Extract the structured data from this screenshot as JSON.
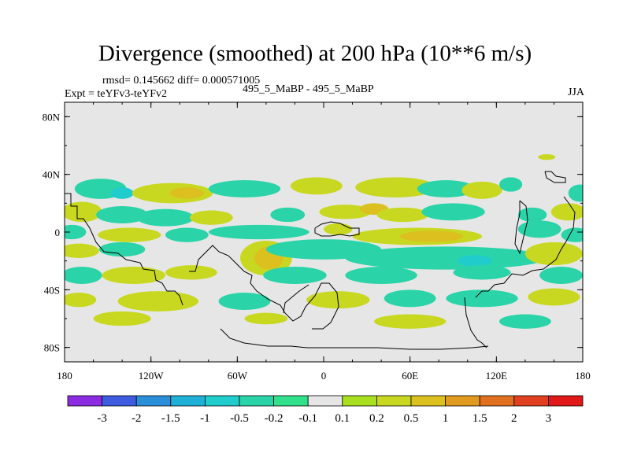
{
  "title": "Divergence (smoothed) at 200 hPa (10**6 m/s)",
  "stats": {
    "rmsd": "rmsd= 0.145662  diff= 0.000571005",
    "expt": "Expt = teYFv3-teYFv2",
    "cases": "495_5_MaBP - 495_5_MaBP",
    "season": "JJA"
  },
  "map": {
    "projection": "cylindrical equidistant",
    "lon_range": [
      -180,
      180
    ],
    "lat_range": [
      -90,
      90
    ],
    "background_color": "#e6e6e6",
    "coastline_color": "#000000",
    "x_ticks": [
      "180",
      "120W",
      "60W",
      "0",
      "60E",
      "120E",
      "180"
    ],
    "y_ticks": [
      "80N",
      "40N",
      "0",
      "40S",
      "80S"
    ]
  },
  "colorbar": {
    "labels": [
      "-3",
      "-2",
      "-1.5",
      "-1",
      "-0.5",
      "-0.2",
      "-0.1",
      "0.1",
      "0.2",
      "0.5",
      "1",
      "1.5",
      "2",
      "3"
    ],
    "colors": [
      "#8b2be2",
      "#3d5ce0",
      "#2a8fd8",
      "#1fb0d8",
      "#20cccc",
      "#2ad4a8",
      "#30e08a",
      "#e6e6e6",
      "#a8e020",
      "#c8d820",
      "#dcc020",
      "#e09a20",
      "#e07020",
      "#e04020",
      "#e01818"
    ]
  },
  "chart_data": {
    "type": "heatmap",
    "title": "Divergence (smoothed) at 200 hPa (10**6 m/s)",
    "field": "difference teYFv3 - teYFv2, JJA",
    "levels": [
      -3,
      -2,
      -1.5,
      -1,
      -0.5,
      -0.2,
      -0.1,
      0.1,
      0.2,
      0.5,
      1,
      1.5,
      2,
      3
    ],
    "blobs": [
      {
        "lon": -155,
        "lat": 30,
        "rlon": 18,
        "rlat": 7,
        "v": -0.3
      },
      {
        "lon": -140,
        "lat": 27,
        "rlon": 8,
        "rlat": 4,
        "v": -0.6
      },
      {
        "lon": -105,
        "lat": 27,
        "rlon": 28,
        "rlat": 7,
        "v": 0.3
      },
      {
        "lon": -95,
        "lat": 27,
        "rlon": 12,
        "rlat": 4,
        "v": 0.6
      },
      {
        "lon": -55,
        "lat": 30,
        "rlon": 25,
        "rlat": 6,
        "v": -0.3
      },
      {
        "lon": -5,
        "lat": 32,
        "rlon": 18,
        "rlat": 6,
        "v": 0.3
      },
      {
        "lon": 50,
        "lat": 31,
        "rlon": 28,
        "rlat": 7,
        "v": 0.3
      },
      {
        "lon": 85,
        "lat": 30,
        "rlon": 20,
        "rlat": 6,
        "v": -0.3
      },
      {
        "lon": 110,
        "lat": 29,
        "rlon": 14,
        "rlat": 6,
        "v": 0.3
      },
      {
        "lon": 130,
        "lat": 33,
        "rlon": 8,
        "rlat": 5,
        "v": -0.3
      },
      {
        "lon": 178,
        "lat": 27,
        "rlon": 8,
        "rlat": 6,
        "v": -0.3
      },
      {
        "lon": -168,
        "lat": 14,
        "rlon": 14,
        "rlat": 7,
        "v": 0.3
      },
      {
        "lon": -140,
        "lat": 12,
        "rlon": 18,
        "rlat": 6,
        "v": -0.3
      },
      {
        "lon": -110,
        "lat": 10,
        "rlon": 20,
        "rlat": 6,
        "v": -0.3
      },
      {
        "lon": -78,
        "lat": 10,
        "rlon": 15,
        "rlat": 5,
        "v": 0.3
      },
      {
        "lon": -25,
        "lat": 12,
        "rlon": 12,
        "rlat": 5,
        "v": -0.3
      },
      {
        "lon": 15,
        "lat": 14,
        "rlon": 18,
        "rlat": 5,
        "v": 0.3
      },
      {
        "lon": 35,
        "lat": 16,
        "rlon": 10,
        "rlat": 4,
        "v": 0.6
      },
      {
        "lon": 55,
        "lat": 12,
        "rlon": 18,
        "rlat": 5,
        "v": 0.3
      },
      {
        "lon": 90,
        "lat": 14,
        "rlon": 22,
        "rlat": 6,
        "v": -0.3
      },
      {
        "lon": 145,
        "lat": 12,
        "rlon": 10,
        "rlat": 5,
        "v": -0.3
      },
      {
        "lon": 170,
        "lat": 14,
        "rlon": 12,
        "rlat": 6,
        "v": 0.3
      },
      {
        "lon": -175,
        "lat": 0,
        "rlon": 10,
        "rlat": 5,
        "v": -0.3
      },
      {
        "lon": -135,
        "lat": -2,
        "rlon": 22,
        "rlat": 5,
        "v": 0.3
      },
      {
        "lon": -95,
        "lat": -2,
        "rlon": 15,
        "rlat": 5,
        "v": -0.3
      },
      {
        "lon": -45,
        "lat": 0,
        "rlon": 35,
        "rlat": 5,
        "v": -0.3
      },
      {
        "lon": 10,
        "lat": 2,
        "rlon": 10,
        "rlat": 4,
        "v": 0.3
      },
      {
        "lon": 65,
        "lat": -3,
        "rlon": 45,
        "rlat": 6,
        "v": 0.3
      },
      {
        "lon": 75,
        "lat": -3,
        "rlon": 22,
        "rlat": 4,
        "v": 0.6
      },
      {
        "lon": 150,
        "lat": 2,
        "rlon": 15,
        "rlat": 6,
        "v": -0.3
      },
      {
        "lon": 175,
        "lat": -2,
        "rlon": 10,
        "rlat": 5,
        "v": -0.3
      },
      {
        "lon": -170,
        "lat": -13,
        "rlon": 14,
        "rlat": 5,
        "v": 0.3
      },
      {
        "lon": -140,
        "lat": -12,
        "rlon": 16,
        "rlat": 5,
        "v": -0.3
      },
      {
        "lon": -40,
        "lat": -18,
        "rlon": 18,
        "rlat": 12,
        "v": 0.3
      },
      {
        "lon": -38,
        "lat": -18,
        "rlon": 10,
        "rlat": 8,
        "v": 0.6
      },
      {
        "lon": 0,
        "lat": -12,
        "rlon": 40,
        "rlat": 7,
        "v": -0.3
      },
      {
        "lon": 85,
        "lat": -18,
        "rlon": 70,
        "rlat": 8,
        "v": -0.3
      },
      {
        "lon": 105,
        "lat": -20,
        "rlon": 12,
        "rlat": 4,
        "v": -0.6
      },
      {
        "lon": 160,
        "lat": -15,
        "rlon": 20,
        "rlat": 8,
        "v": 0.3
      },
      {
        "lon": -168,
        "lat": -30,
        "rlon": 14,
        "rlat": 6,
        "v": -0.3
      },
      {
        "lon": -132,
        "lat": -30,
        "rlon": 22,
        "rlat": 6,
        "v": 0.3
      },
      {
        "lon": -92,
        "lat": -28,
        "rlon": 18,
        "rlat": 5,
        "v": 0.3
      },
      {
        "lon": -20,
        "lat": -30,
        "rlon": 22,
        "rlat": 6,
        "v": -0.3
      },
      {
        "lon": 40,
        "lat": -30,
        "rlon": 25,
        "rlat": 6,
        "v": -0.3
      },
      {
        "lon": 110,
        "lat": -28,
        "rlon": 20,
        "rlat": 5,
        "v": -0.3
      },
      {
        "lon": 165,
        "lat": -30,
        "rlon": 15,
        "rlat": 6,
        "v": -0.3
      },
      {
        "lon": -170,
        "lat": -47,
        "rlon": 12,
        "rlat": 5,
        "v": 0.3
      },
      {
        "lon": -115,
        "lat": -48,
        "rlon": 28,
        "rlat": 7,
        "v": 0.3
      },
      {
        "lon": -55,
        "lat": -48,
        "rlon": 18,
        "rlat": 6,
        "v": -0.3
      },
      {
        "lon": 10,
        "lat": -47,
        "rlon": 22,
        "rlat": 6,
        "v": 0.3
      },
      {
        "lon": 60,
        "lat": -46,
        "rlon": 18,
        "rlat": 6,
        "v": -0.3
      },
      {
        "lon": 110,
        "lat": -46,
        "rlon": 25,
        "rlat": 6,
        "v": -0.3
      },
      {
        "lon": 160,
        "lat": -45,
        "rlon": 18,
        "rlat": 6,
        "v": 0.3
      },
      {
        "lon": -140,
        "lat": -60,
        "rlon": 20,
        "rlat": 5,
        "v": 0.3
      },
      {
        "lon": -40,
        "lat": -60,
        "rlon": 15,
        "rlat": 4,
        "v": 0.3
      },
      {
        "lon": 60,
        "lat": -62,
        "rlon": 25,
        "rlat": 5,
        "v": 0.3
      },
      {
        "lon": 140,
        "lat": -62,
        "rlon": 18,
        "rlat": 5,
        "v": -0.3
      },
      {
        "lon": 155,
        "lat": 52,
        "rlon": 6,
        "rlat": 2,
        "v": 0.3
      }
    ]
  }
}
